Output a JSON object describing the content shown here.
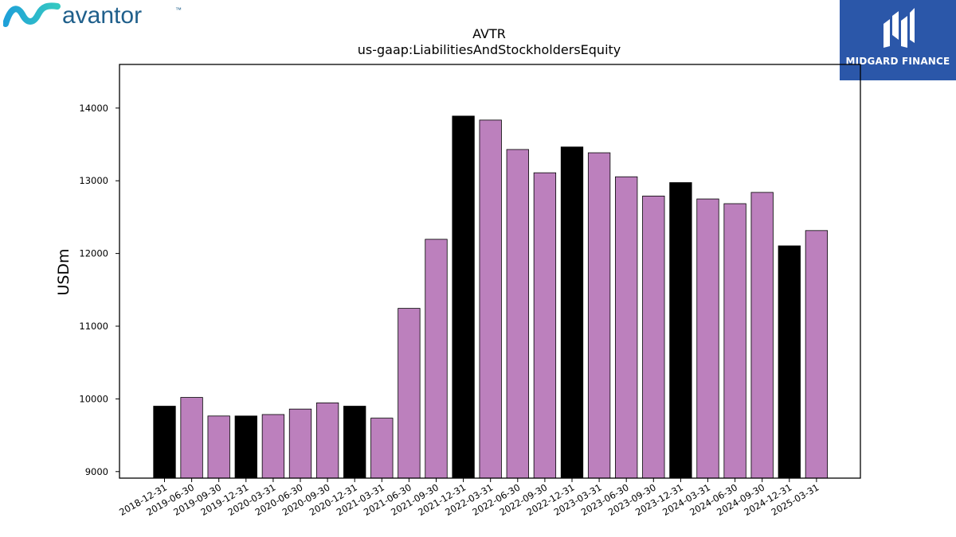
{
  "brand": {
    "left_logo_text": "avantor",
    "left_logo_mark": "™",
    "right_logo_text": "MIDGARD FINANCE"
  },
  "colors": {
    "annual_bar": "#000000",
    "quarter_bar": "#bc80bd",
    "left_logo_text": "#1f5f8b",
    "left_logo_mark_start": "#1fa0d8",
    "left_logo_mark_end": "#35c9c2",
    "right_logo_bg": "#2b57a9"
  },
  "chart_data": {
    "type": "bar",
    "title": "AVTR",
    "subtitle": "us-gaap:LiabilitiesAndStockholdersEquity",
    "xlabel": "",
    "ylabel": "USDm",
    "ylim": [
      8910,
      14600
    ],
    "yticks": [
      9000,
      10000,
      11000,
      12000,
      13000,
      14000
    ],
    "grid": false,
    "categories": [
      "2018-12-31",
      "2019-06-30",
      "2019-09-30",
      "2019-12-31",
      "2020-03-31",
      "2020-06-30",
      "2020-09-30",
      "2020-12-31",
      "2021-03-31",
      "2021-06-30",
      "2021-09-30",
      "2021-12-31",
      "2022-03-31",
      "2022-06-30",
      "2022-09-30",
      "2022-12-31",
      "2023-03-31",
      "2023-06-30",
      "2023-09-30",
      "2023-12-31",
      "2024-03-31",
      "2024-06-30",
      "2024-09-30",
      "2024-12-31",
      "2025-03-31"
    ],
    "values": [
      9900,
      10020,
      9765,
      9765,
      9785,
      9860,
      9945,
      9900,
      9735,
      11245,
      12195,
      13890,
      13835,
      13430,
      13110,
      13465,
      13385,
      13055,
      12790,
      12975,
      12750,
      12685,
      12840,
      12105,
      12315
    ],
    "annual": [
      true,
      false,
      false,
      true,
      false,
      false,
      false,
      true,
      false,
      false,
      false,
      true,
      false,
      false,
      false,
      true,
      false,
      false,
      false,
      true,
      false,
      false,
      false,
      true,
      false
    ]
  }
}
